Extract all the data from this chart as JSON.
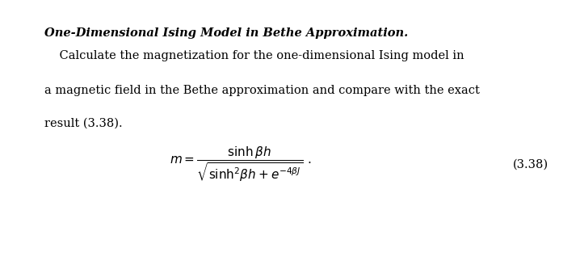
{
  "background_color": "#ffffff",
  "title_text": "One-Dimensional Ising Model in Bethe Approximation.",
  "body_indent_line": "    Calculate the magnetization for the one-dimensional Ising model in",
  "body_line2": "a magnetic field in the Bethe approximation and compare with the exact",
  "body_line3": "result (3.38).",
  "equation_label": "(3.38)",
  "title_fontsize": 10.5,
  "body_fontsize": 10.5,
  "eq_fontsize": 11
}
